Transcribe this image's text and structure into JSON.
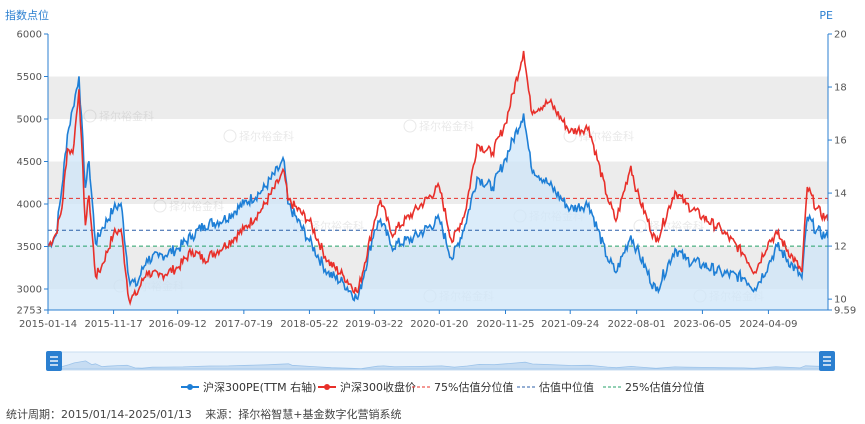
{
  "chart_data": {
    "type": "line",
    "left_axis_title": "指数点位",
    "right_axis_title": "PE",
    "left_ylim": [
      2753,
      6000
    ],
    "left_ticks": [
      6000,
      5500,
      5000,
      4500,
      4000,
      3500,
      3000,
      2753
    ],
    "right_ylim": [
      9.59,
      20
    ],
    "right_ticks": [
      20,
      18,
      16,
      14,
      12,
      10,
      9.59
    ],
    "x_range": [
      "2015-01-14",
      "2025-01-13"
    ],
    "x_ticks": [
      "2015-01-14",
      "2015-11-17",
      "2016-09-12",
      "2017-07-19",
      "2018-05-22",
      "2019-03-22",
      "2020-01-20",
      "2020-11-25",
      "2021-09-24",
      "2022-08-01",
      "2023-06-05",
      "2024-04-09"
    ],
    "series": [
      {
        "name": "沪深300PE(TTM 右轴)",
        "axis": "right",
        "color": "#1e7fd6",
        "points": [
          [
            "2015-01-14",
            12.0
          ],
          [
            "2015-02-20",
            12.4
          ],
          [
            "2015-03-20",
            14.2
          ],
          [
            "2015-04-15",
            16.2
          ],
          [
            "2015-05-10",
            17.2
          ],
          [
            "2015-06-08",
            18.4
          ],
          [
            "2015-07-08",
            14.2
          ],
          [
            "2015-07-25",
            15.2
          ],
          [
            "2015-08-25",
            12.1
          ],
          [
            "2015-09-20",
            12.6
          ],
          [
            "2015-11-17",
            13.4
          ],
          [
            "2015-12-22",
            13.6
          ],
          [
            "2016-01-28",
            10.8
          ],
          [
            "2016-03-01",
            10.5
          ],
          [
            "2016-04-20",
            11.5
          ],
          [
            "2016-06-15",
            11.6
          ],
          [
            "2016-09-12",
            11.9
          ],
          [
            "2016-11-20",
            12.4
          ],
          [
            "2017-01-15",
            12.8
          ],
          [
            "2017-04-15",
            13.0
          ],
          [
            "2017-07-19",
            13.6
          ],
          [
            "2017-10-15",
            14.1
          ],
          [
            "2018-01-24",
            15.2
          ],
          [
            "2018-02-10",
            13.6
          ],
          [
            "2018-05-22",
            12.2
          ],
          [
            "2018-08-15",
            11.0
          ],
          [
            "2018-10-30",
            10.6
          ],
          [
            "2019-01-03",
            10.0
          ],
          [
            "2019-03-22",
            12.6
          ],
          [
            "2019-04-20",
            13.0
          ],
          [
            "2019-06-10",
            12.0
          ],
          [
            "2019-09-20",
            12.3
          ],
          [
            "2020-01-20",
            13.0
          ],
          [
            "2020-03-20",
            11.5
          ],
          [
            "2020-05-20",
            12.8
          ],
          [
            "2020-07-15",
            14.6
          ],
          [
            "2020-09-25",
            14.2
          ],
          [
            "2020-11-25",
            15.3
          ],
          [
            "2021-02-18",
            17.0
          ],
          [
            "2021-03-25",
            15.0
          ],
          [
            "2021-06-20",
            14.3
          ],
          [
            "2021-09-24",
            13.4
          ],
          [
            "2021-12-20",
            13.6
          ],
          [
            "2022-03-15",
            11.6
          ],
          [
            "2022-04-26",
            11.0
          ],
          [
            "2022-07-05",
            12.4
          ],
          [
            "2022-08-01",
            11.9
          ],
          [
            "2022-10-31",
            10.3
          ],
          [
            "2023-01-28",
            11.9
          ],
          [
            "2023-03-20",
            11.5
          ],
          [
            "2023-06-05",
            11.3
          ],
          [
            "2023-09-01",
            11.0
          ],
          [
            "2023-12-20",
            10.8
          ],
          [
            "2024-02-05",
            10.4
          ],
          [
            "2024-04-09",
            11.3
          ],
          [
            "2024-05-20",
            12.0
          ],
          [
            "2024-09-13",
            10.8
          ],
          [
            "2024-10-08",
            13.1
          ],
          [
            "2024-11-20",
            12.6
          ],
          [
            "2025-01-13",
            12.3
          ]
        ]
      },
      {
        "name": "沪深300收盘价",
        "axis": "left",
        "color": "#e8302a",
        "points": [
          [
            "2015-01-14",
            3500
          ],
          [
            "2015-02-20",
            3650
          ],
          [
            "2015-03-20",
            3950
          ],
          [
            "2015-04-15",
            4650
          ],
          [
            "2015-05-10",
            4600
          ],
          [
            "2015-06-08",
            5350
          ],
          [
            "2015-07-08",
            3750
          ],
          [
            "2015-07-25",
            4100
          ],
          [
            "2015-08-25",
            3150
          ],
          [
            "2015-09-20",
            3250
          ],
          [
            "2015-11-17",
            3650
          ],
          [
            "2015-12-22",
            3700
          ],
          [
            "2016-01-28",
            2880
          ],
          [
            "2016-03-01",
            2930
          ],
          [
            "2016-04-20",
            3200
          ],
          [
            "2016-06-15",
            3150
          ],
          [
            "2016-09-12",
            3250
          ],
          [
            "2016-11-20",
            3450
          ],
          [
            "2017-01-15",
            3350
          ],
          [
            "2017-04-15",
            3500
          ],
          [
            "2017-07-19",
            3700
          ],
          [
            "2017-10-15",
            3950
          ],
          [
            "2018-01-24",
            4380
          ],
          [
            "2018-02-10",
            4050
          ],
          [
            "2018-05-22",
            3800
          ],
          [
            "2018-08-15",
            3330
          ],
          [
            "2018-10-30",
            3150
          ],
          [
            "2019-01-03",
            2960
          ],
          [
            "2019-03-22",
            3800
          ],
          [
            "2019-04-20",
            4050
          ],
          [
            "2019-06-10",
            3650
          ],
          [
            "2019-09-20",
            3900
          ],
          [
            "2020-01-20",
            4200
          ],
          [
            "2020-03-20",
            3550
          ],
          [
            "2020-05-20",
            3900
          ],
          [
            "2020-07-15",
            4700
          ],
          [
            "2020-09-25",
            4600
          ],
          [
            "2020-11-25",
            4950
          ],
          [
            "2021-02-18",
            5800
          ],
          [
            "2021-03-25",
            5100
          ],
          [
            "2021-06-20",
            5200
          ],
          [
            "2021-09-24",
            4850
          ],
          [
            "2021-12-20",
            4900
          ],
          [
            "2022-03-15",
            4100
          ],
          [
            "2022-04-26",
            3800
          ],
          [
            "2022-07-05",
            4450
          ],
          [
            "2022-08-01",
            4150
          ],
          [
            "2022-10-31",
            3550
          ],
          [
            "2023-01-28",
            4150
          ],
          [
            "2023-03-20",
            4000
          ],
          [
            "2023-06-05",
            3850
          ],
          [
            "2023-09-01",
            3700
          ],
          [
            "2023-12-20",
            3400
          ],
          [
            "2024-02-05",
            3200
          ],
          [
            "2024-04-09",
            3550
          ],
          [
            "2024-05-20",
            3650
          ],
          [
            "2024-09-13",
            3200
          ],
          [
            "2024-10-08",
            4200
          ],
          [
            "2024-11-20",
            3950
          ],
          [
            "2025-01-13",
            3800
          ]
        ]
      }
    ],
    "reference_lines": [
      {
        "name": "75%估值分位值",
        "axis": "right",
        "value": 13.8,
        "color": "#e8302a"
      },
      {
        "name": "估值中位值",
        "axis": "right",
        "value": 12.6,
        "color": "#2b5fa8"
      },
      {
        "name": "25%估值分位值",
        "axis": "right",
        "value": 12.0,
        "color": "#26a26a"
      }
    ],
    "legend_placement": "bottom",
    "grid_bands": true
  },
  "watermark": "择尔裕金科",
  "footer": {
    "period": "统计周期：2015/01/14-2025/01/13",
    "source": "来源：择尔裕智慧+基金数字化营销系统"
  }
}
